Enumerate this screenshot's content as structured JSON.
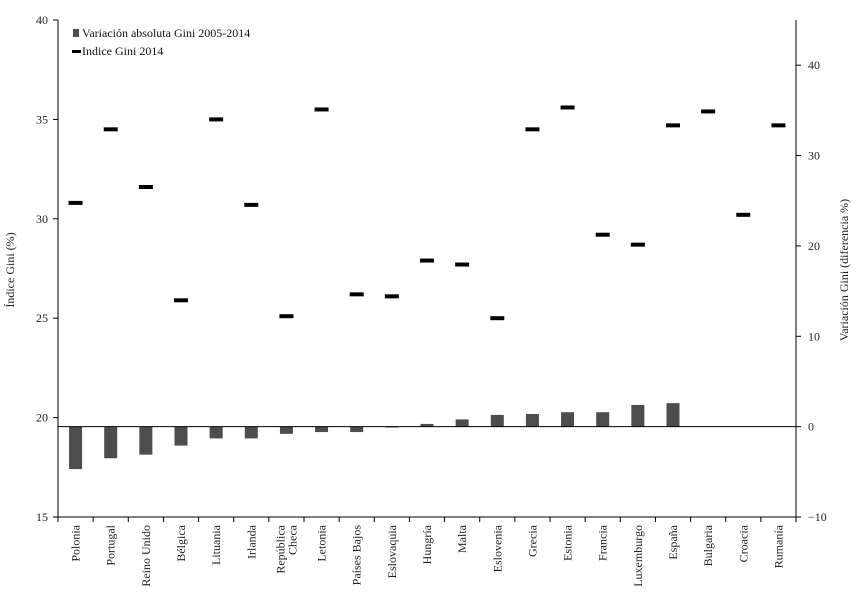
{
  "chart_data": {
    "type": "bar",
    "categories": [
      "Polonia",
      "Portugal",
      "Reino Unido",
      "Bélgica",
      "Lituania",
      "Irlanda",
      "República Checa",
      "Letonia",
      "Países Bajos",
      "Eslovaquia",
      "Hungría",
      "Malta",
      "Eslovenia",
      "Grecia",
      "Estonia",
      "Francia",
      "Luxemburgo",
      "España",
      "Bulgaria",
      "Croacia",
      "Rumanía"
    ],
    "category_label_lines": [
      [
        "Polonia"
      ],
      [
        "Portugal"
      ],
      [
        "Reino Unido"
      ],
      [
        "Bélgica"
      ],
      [
        "Lituania"
      ],
      [
        "Irlanda"
      ],
      [
        "República",
        "Checa"
      ],
      [
        "Letonia"
      ],
      [
        "Países Bajos"
      ],
      [
        "Eslovaquia"
      ],
      [
        "Hungría"
      ],
      [
        "Malta"
      ],
      [
        "Eslovenia"
      ],
      [
        "Grecia"
      ],
      [
        "Estonia"
      ],
      [
        "Francia"
      ],
      [
        "Luxemburgo"
      ],
      [
        "España"
      ],
      [
        "Bulgaria"
      ],
      [
        "Croacia"
      ],
      [
        "Rumanía"
      ]
    ],
    "series": [
      {
        "name": "Variación absoluta Gini 2005-2014",
        "type": "bar",
        "axis": "right",
        "color": "#4d4d4d",
        "values": [
          -4.7,
          -3.5,
          -3.1,
          -2.1,
          -1.3,
          -1.3,
          -0.8,
          -0.6,
          -0.6,
          -0.1,
          0.3,
          0.8,
          1.3,
          1.4,
          1.6,
          1.6,
          2.4,
          2.6,
          null,
          null,
          null
        ]
      },
      {
        "name": "Indice Gini 2014",
        "type": "marker",
        "axis": "left",
        "color": "#000000",
        "values": [
          30.8,
          34.5,
          31.6,
          25.9,
          35.0,
          30.7,
          25.1,
          35.5,
          26.2,
          26.1,
          27.9,
          27.7,
          25.0,
          34.5,
          35.6,
          29.2,
          28.7,
          34.7,
          35.4,
          30.2,
          34.7
        ]
      }
    ],
    "y_left": {
      "label": "Índice Gini (%)",
      "ylim": [
        15,
        40
      ],
      "ticks": [
        15,
        20,
        25,
        30,
        35,
        40
      ]
    },
    "y_right": {
      "label": "Variación Gini (diferencia %)",
      "ylim": [
        -10,
        45
      ],
      "ticks": [
        -10,
        0,
        10,
        20,
        30,
        40
      ]
    },
    "legend_position": "top-left",
    "grid": false,
    "title": "",
    "xlabel": ""
  }
}
